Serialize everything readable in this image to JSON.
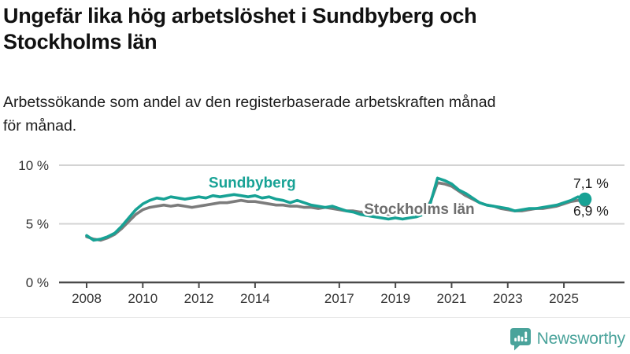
{
  "header": {
    "title_lines": [
      "Ungefär lika hög arbetslöshet i Sundbyberg och",
      "Stockholms län"
    ],
    "subtitle_lines": [
      "Arbetssökande som andel av den registerbaserade arbetskraften månad",
      "för månad."
    ]
  },
  "chart_data": {
    "type": "line",
    "title": "Ungefär lika hög arbetslöshet i Sundbyberg och Stockholms län",
    "subtitle": "Arbetssökande som andel av den registerbaserade arbetskraften månad för månad.",
    "grid": "horizontal gridlines at 5% and 10%",
    "legend": "inline series labels on chart",
    "xlim": [
      2007,
      2027.2
    ],
    "ylim": [
      0,
      11.8
    ],
    "xticks": [
      2008,
      2010,
      2012,
      2014,
      2017,
      2019,
      2021,
      2023,
      2025
    ],
    "yticks": [
      {
        "value": 0,
        "label": "0 %"
      },
      {
        "value": 5,
        "label": "5 %"
      },
      {
        "value": 10,
        "label": "10 %"
      }
    ],
    "x": [
      2008,
      2008.25,
      2008.5,
      2008.75,
      2009,
      2009.25,
      2009.5,
      2009.75,
      2010,
      2010.25,
      2010.5,
      2010.75,
      2011,
      2011.25,
      2011.5,
      2011.75,
      2012,
      2012.25,
      2012.5,
      2012.75,
      2013,
      2013.25,
      2013.5,
      2013.75,
      2014,
      2014.25,
      2014.5,
      2014.75,
      2015,
      2015.25,
      2015.5,
      2015.75,
      2016,
      2016.25,
      2016.5,
      2016.75,
      2017,
      2017.25,
      2017.5,
      2017.75,
      2018,
      2018.25,
      2018.5,
      2018.75,
      2019,
      2019.25,
      2019.5,
      2019.75,
      2020,
      2020.25,
      2020.5,
      2020.75,
      2021,
      2021.25,
      2021.5,
      2021.75,
      2022,
      2022.25,
      2022.5,
      2022.75,
      2023,
      2023.25,
      2023.5,
      2023.75,
      2024,
      2024.25,
      2024.5,
      2024.75,
      2025,
      2025.25,
      2025.5,
      2025.75
    ],
    "series": [
      {
        "name": "Sundbyberg",
        "color": "#17a295",
        "label_color": "#17a295",
        "end_label": "7,1 %",
        "end_value": 7.1,
        "end_label_offset": -14,
        "dot_radius": 8.5,
        "label_pos": {
          "year": 2013.9,
          "value": 8.1
        },
        "values": [
          4.0,
          3.6,
          3.7,
          3.9,
          4.2,
          4.8,
          5.5,
          6.2,
          6.7,
          7.0,
          7.2,
          7.1,
          7.3,
          7.2,
          7.1,
          7.2,
          7.3,
          7.2,
          7.4,
          7.3,
          7.4,
          7.5,
          7.4,
          7.3,
          7.4,
          7.2,
          7.3,
          7.1,
          7.0,
          6.8,
          7.0,
          6.8,
          6.6,
          6.5,
          6.4,
          6.5,
          6.3,
          6.1,
          6.0,
          5.8,
          5.7,
          5.6,
          5.5,
          5.4,
          5.5,
          5.4,
          5.5,
          5.6,
          5.8,
          6.8,
          8.9,
          8.7,
          8.4,
          7.9,
          7.6,
          7.2,
          6.8,
          6.6,
          6.5,
          6.4,
          6.3,
          6.1,
          6.2,
          6.3,
          6.3,
          6.4,
          6.5,
          6.6,
          6.8,
          7.0,
          7.3,
          7.1
        ]
      },
      {
        "name": "Stockholms län",
        "color": "#7c7c7c",
        "label_color": "#6e6e6e",
        "end_label": "6,9 %",
        "end_value": 6.9,
        "end_label_offset": 18,
        "dot_radius": 7,
        "label_pos": {
          "year": 2019.85,
          "value": 5.85
        },
        "values": [
          3.9,
          3.7,
          3.6,
          3.8,
          4.1,
          4.6,
          5.2,
          5.8,
          6.2,
          6.4,
          6.5,
          6.6,
          6.5,
          6.6,
          6.5,
          6.4,
          6.5,
          6.6,
          6.7,
          6.8,
          6.8,
          6.9,
          7.0,
          6.9,
          6.9,
          6.8,
          6.7,
          6.6,
          6.6,
          6.5,
          6.5,
          6.4,
          6.4,
          6.3,
          6.4,
          6.3,
          6.2,
          6.1,
          6.1,
          6.0,
          6.0,
          5.9,
          5.9,
          5.8,
          5.8,
          5.9,
          5.9,
          6.0,
          6.0,
          6.9,
          8.5,
          8.4,
          8.2,
          7.8,
          7.4,
          7.1,
          6.8,
          6.6,
          6.5,
          6.3,
          6.2,
          6.1,
          6.1,
          6.2,
          6.3,
          6.3,
          6.4,
          6.5,
          6.7,
          6.9,
          7.0,
          6.9
        ]
      }
    ]
  },
  "footer": {
    "brand": "Newsworthy"
  },
  "colors": {
    "accent_teal": "#17a295",
    "series_gray": "#7c7c7c",
    "logo_teal": "#4aa39b",
    "gridline": "#d3d3d3",
    "axis": "#4a4a4a"
  }
}
